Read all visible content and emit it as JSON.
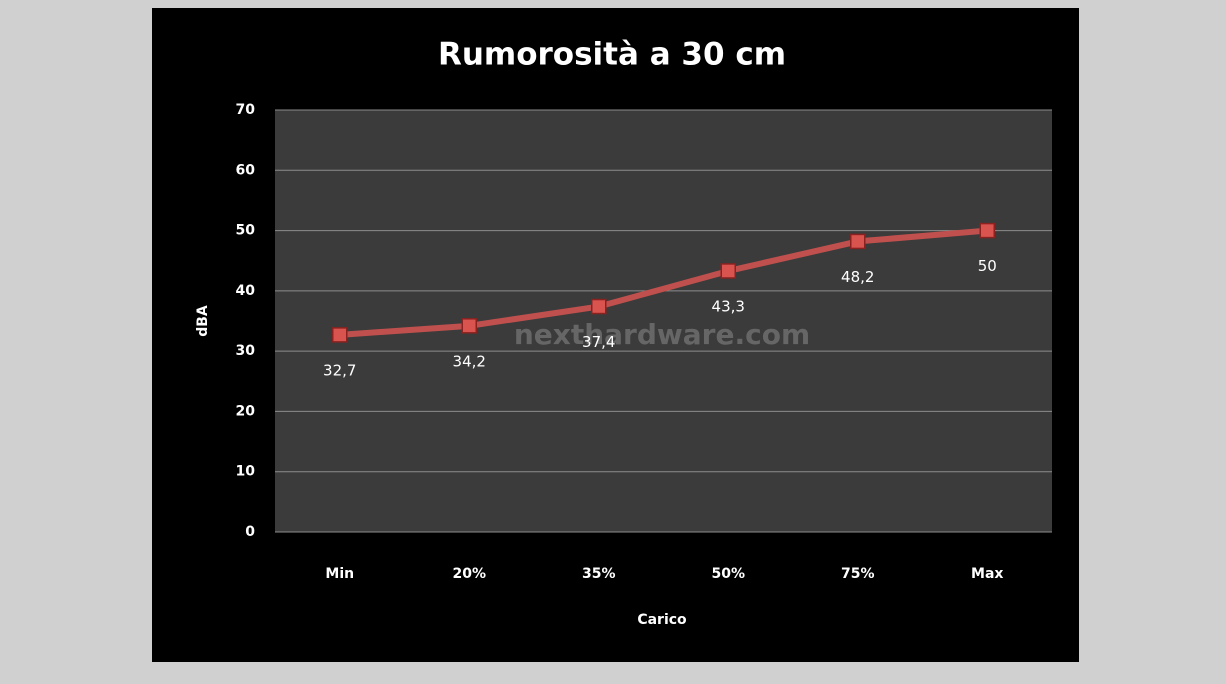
{
  "chart_data": {
    "type": "line",
    "title": "Rumorosità a 30 cm",
    "x_label": "Carico",
    "y_label": "dBA",
    "annotation": "nexthardware.com",
    "categories": [
      "Min",
      "20%",
      "35%",
      "50%",
      "75%",
      "Max"
    ],
    "series": [
      {
        "name": "dBA",
        "color": "#c0504d",
        "values": [
          32.7,
          34.2,
          37.4,
          43.3,
          48.2,
          50
        ],
        "value_labels": [
          "32,7",
          "34,2",
          "37,4",
          "43,3",
          "48,2",
          "50"
        ]
      }
    ],
    "ylim": [
      0,
      70
    ],
    "yticks": [
      0,
      10,
      20,
      30,
      40,
      50,
      60,
      70
    ],
    "grid": true
  }
}
